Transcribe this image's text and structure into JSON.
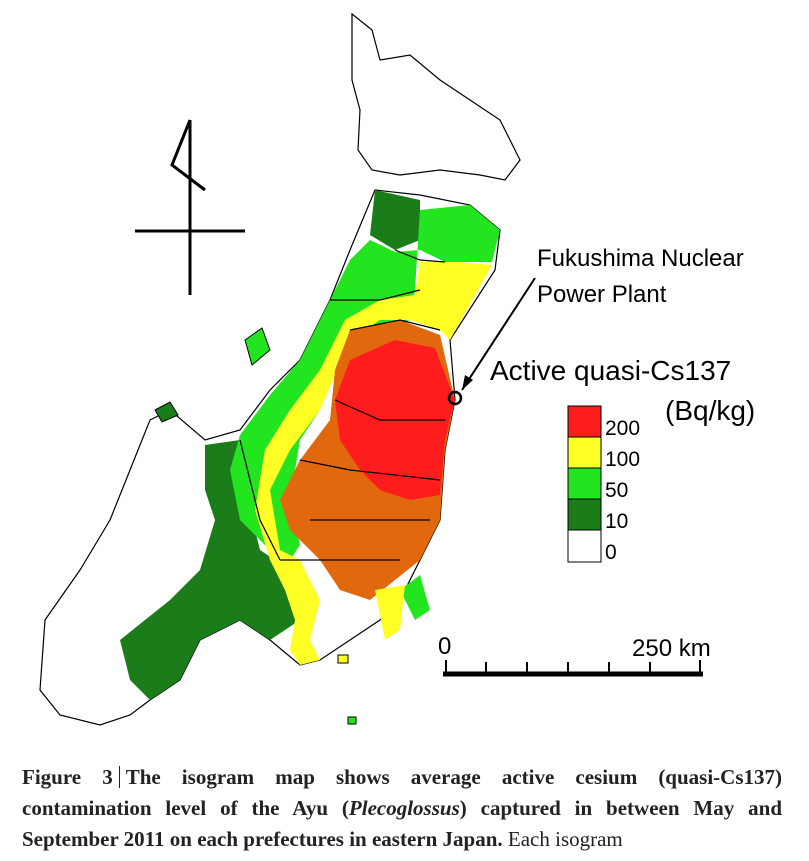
{
  "figure": {
    "annotations": {
      "plant": [
        "Fukushima  Nuclear",
        "Power Plant"
      ],
      "measure": "Active quasi-Cs137",
      "unit": "(Bq/kg)"
    },
    "legend": [
      {
        "label": "200",
        "color": "#ff1c1c"
      },
      {
        "label": "100",
        "color": "#e2680e"
      },
      {
        "label": "50",
        "color": "#ffff26"
      },
      {
        "label": "10",
        "color": "#22e41f"
      },
      {
        "label": "0",
        "color": "#1a7d1a"
      }
    ],
    "scale": {
      "start": "0",
      "end": "250 km"
    },
    "caption": {
      "label": "Figure 3",
      "bold_1": "The isogram map shows average active cesium (quasi-Cs137) contamination level of the Ayu (",
      "italic": "Plecoglossus",
      "bold_2": ") captured in between May and September 2011 on each prefectures in eastern Japan.",
      "normal": "Each isogram"
    }
  }
}
